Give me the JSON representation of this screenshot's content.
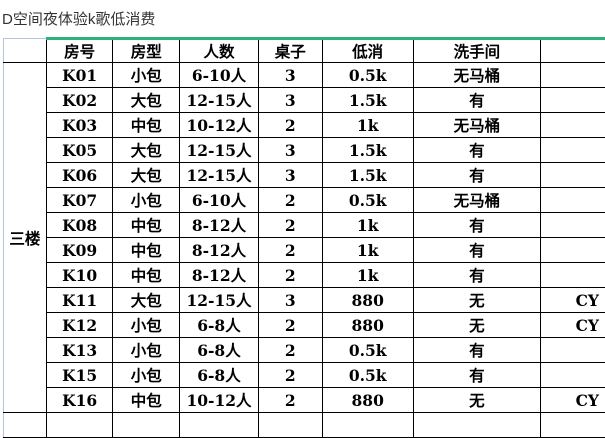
{
  "title": "D空间夜体验k歌低消费",
  "floor": "三楼",
  "headers": [
    "房号",
    "房型",
    "人数",
    "桌子",
    "低消",
    "洗手间",
    ""
  ],
  "rows": [
    [
      "K01",
      "小包",
      "6-10人",
      "3",
      "0.5k",
      "无马桶",
      ""
    ],
    [
      "K02",
      "大包",
      "12-15人",
      "3",
      "1.5k",
      "有",
      ""
    ],
    [
      "K03",
      "中包",
      "10-12人",
      "2",
      "1k",
      "无马桶",
      ""
    ],
    [
      "K05",
      "大包",
      "12-15人",
      "3",
      "1.5k",
      "有",
      ""
    ],
    [
      "K06",
      "大包",
      "12-15人",
      "3",
      "1.5k",
      "有",
      ""
    ],
    [
      "K07",
      "小包",
      "6-10人",
      "2",
      "0.5k",
      "无马桶",
      ""
    ],
    [
      "K08",
      "中包",
      "8-12人",
      "2",
      "1k",
      "有",
      ""
    ],
    [
      "K09",
      "中包",
      "8-12人",
      "2",
      "1k",
      "有",
      ""
    ],
    [
      "K10",
      "中包",
      "8-12人",
      "2",
      "1k",
      "有",
      ""
    ],
    [
      "K11",
      "大包",
      "12-15人",
      "3",
      "880",
      "无",
      "CY"
    ],
    [
      "K12",
      "小包",
      "6-8人",
      "2",
      "880",
      "无",
      "CY"
    ],
    [
      "K13",
      "小包",
      "6-8人",
      "2",
      "0.5k",
      "有",
      ""
    ],
    [
      "K15",
      "小包",
      "6-8人",
      "2",
      "0.5k",
      "有",
      ""
    ],
    [
      "K16",
      "中包",
      "10-12人",
      "2",
      "880",
      "无",
      "CY"
    ]
  ]
}
